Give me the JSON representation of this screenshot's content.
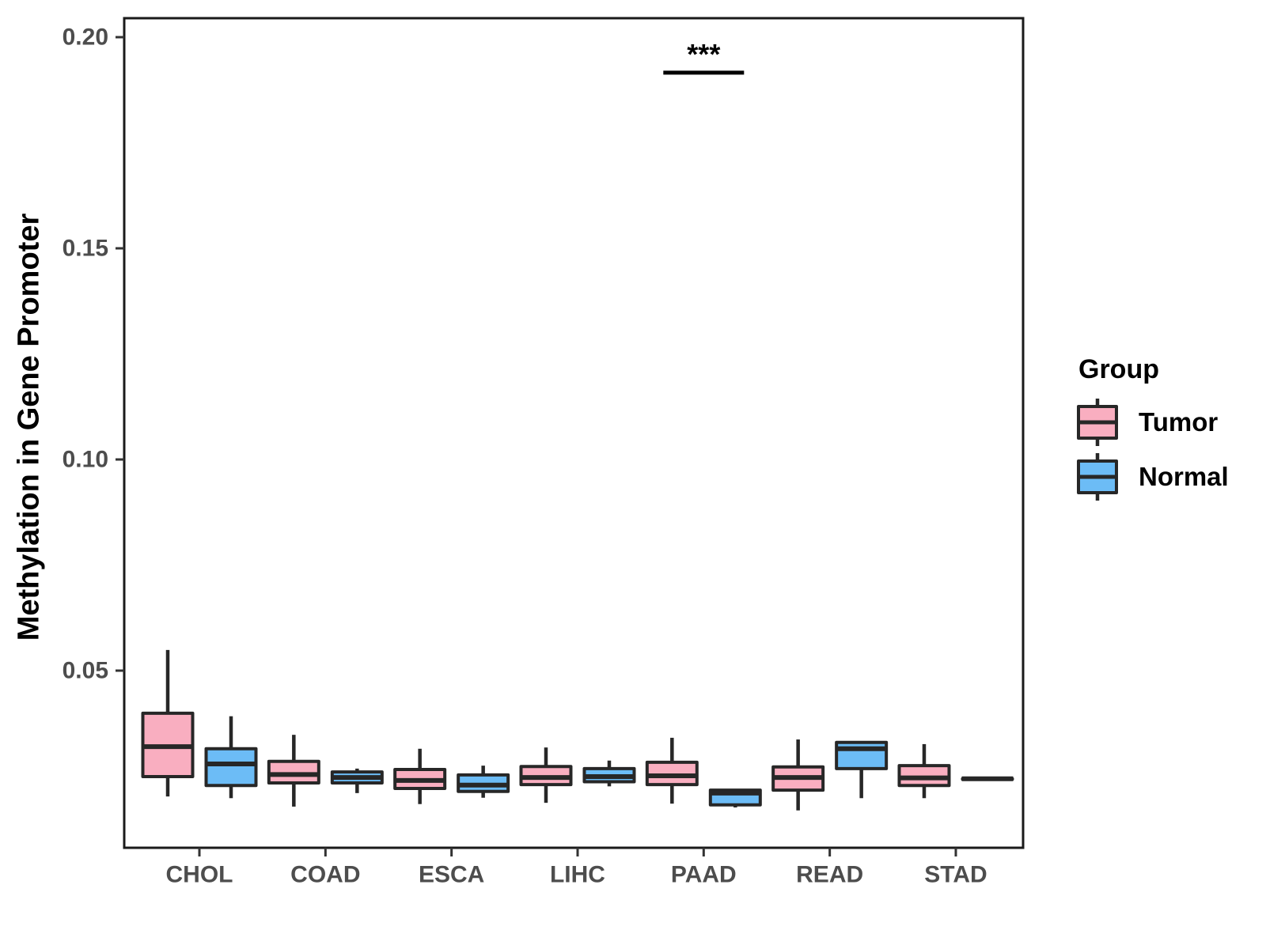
{
  "figure": {
    "background": "#ffffff"
  },
  "legend": {
    "title": "Group",
    "items": [
      {
        "label": "Tumor",
        "color": "#F9AEC0"
      },
      {
        "label": "Normal",
        "color": "#6CBCF6"
      }
    ]
  },
  "chart_data": {
    "type": "boxplot",
    "title": "",
    "xlabel": "",
    "ylabel": "Methylation in Gene Promoter",
    "categories": [
      "CHOL",
      "COAD",
      "ESCA",
      "LIHC",
      "PAAD",
      "READ",
      "STAD"
    ],
    "yticks": [
      0.05,
      0.1,
      0.15,
      0.2
    ],
    "ytick_labels": [
      "0.05",
      "0.10",
      "0.15",
      "0.20"
    ],
    "ylim": [
      0.008,
      0.2045
    ],
    "legend_position": "right",
    "grid": false,
    "series": [
      {
        "name": "Tumor",
        "color": "#F9AEC0",
        "stats_order": [
          "min",
          "q1",
          "median",
          "q3",
          "max"
        ],
        "boxes": [
          [
            0.0202,
            0.0249,
            0.032,
            0.0399,
            0.0549
          ],
          [
            0.0178,
            0.0234,
            0.0254,
            0.0285,
            0.0348
          ],
          [
            0.0184,
            0.0221,
            0.024,
            0.0266,
            0.0315
          ],
          [
            0.0187,
            0.023,
            0.0247,
            0.0273,
            0.0318
          ],
          [
            0.0185,
            0.023,
            0.0251,
            0.0283,
            0.0341
          ],
          [
            0.0169,
            0.0217,
            0.0247,
            0.0272,
            0.0337
          ],
          [
            0.0198,
            0.0228,
            0.0246,
            0.0275,
            0.0326
          ]
        ]
      },
      {
        "name": "Normal",
        "color": "#6CBCF6",
        "stats_order": [
          "min",
          "q1",
          "median",
          "q3",
          "max"
        ],
        "boxes": [
          [
            0.0198,
            0.0228,
            0.0279,
            0.0315,
            0.0392
          ],
          [
            0.021,
            0.0234,
            0.0247,
            0.026,
            0.0268
          ],
          [
            0.0199,
            0.0214,
            0.0229,
            0.0253,
            0.0275
          ],
          [
            0.0226,
            0.0237,
            0.0249,
            0.0268,
            0.0287
          ],
          [
            0.0176,
            0.0182,
            0.021,
            0.0217,
            0.0217
          ],
          [
            0.0198,
            0.0268,
            0.0315,
            0.033,
            0.033
          ],
          [
            0.0244,
            0.0244,
            0.0244,
            0.0244,
            0.0244
          ]
        ]
      }
    ],
    "significance": {
      "category": "PAAD",
      "label": "***",
      "bar_value": 0.1916
    }
  }
}
